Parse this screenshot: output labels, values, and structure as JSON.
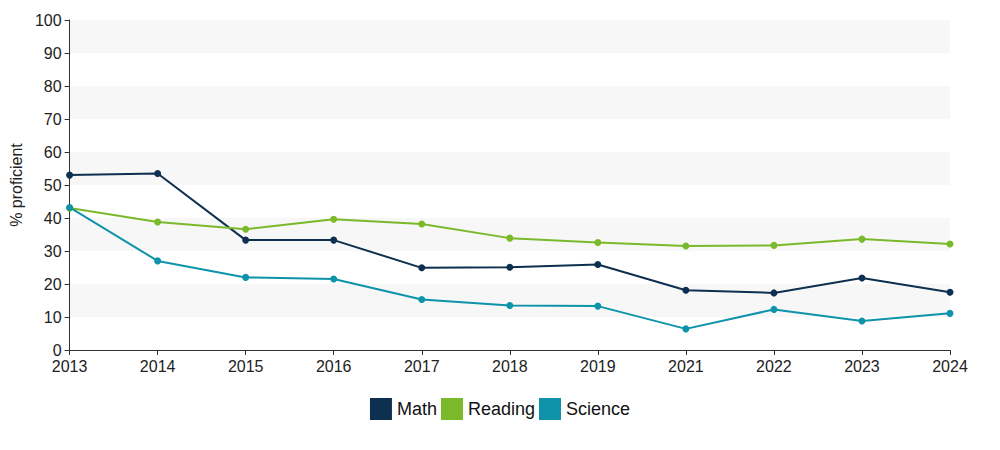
{
  "chart_data": {
    "type": "line",
    "y_label": "% proficient",
    "categories": [
      "2013",
      "2014",
      "2015",
      "2016",
      "2017",
      "2018",
      "2019",
      "2021",
      "2022",
      "2023",
      "2024"
    ],
    "series": [
      {
        "name": "Math",
        "color": "#0d3050",
        "values": [
          53,
          53.5,
          33.3,
          33.3,
          24.9,
          25.1,
          25.9,
          18.1,
          17.3,
          21.8,
          17.5
        ]
      },
      {
        "name": "Reading",
        "color": "#7ab929",
        "values": [
          43,
          38.8,
          36.6,
          39.6,
          38.2,
          33.9,
          32.6,
          31.5,
          31.7,
          33.6,
          32.1
        ]
      },
      {
        "name": "Science",
        "color": "#0e93aa",
        "values": [
          43.2,
          27,
          22,
          21.5,
          15.3,
          13.5,
          13.3,
          6.4,
          12.3,
          8.8,
          11.1
        ]
      }
    ],
    "ylim": [
      0,
      100
    ],
    "yticks": [
      0,
      10,
      20,
      30,
      40,
      50,
      60,
      70,
      80,
      90,
      100
    ],
    "grid": true,
    "legend": "bottom",
    "marker": "circle"
  }
}
